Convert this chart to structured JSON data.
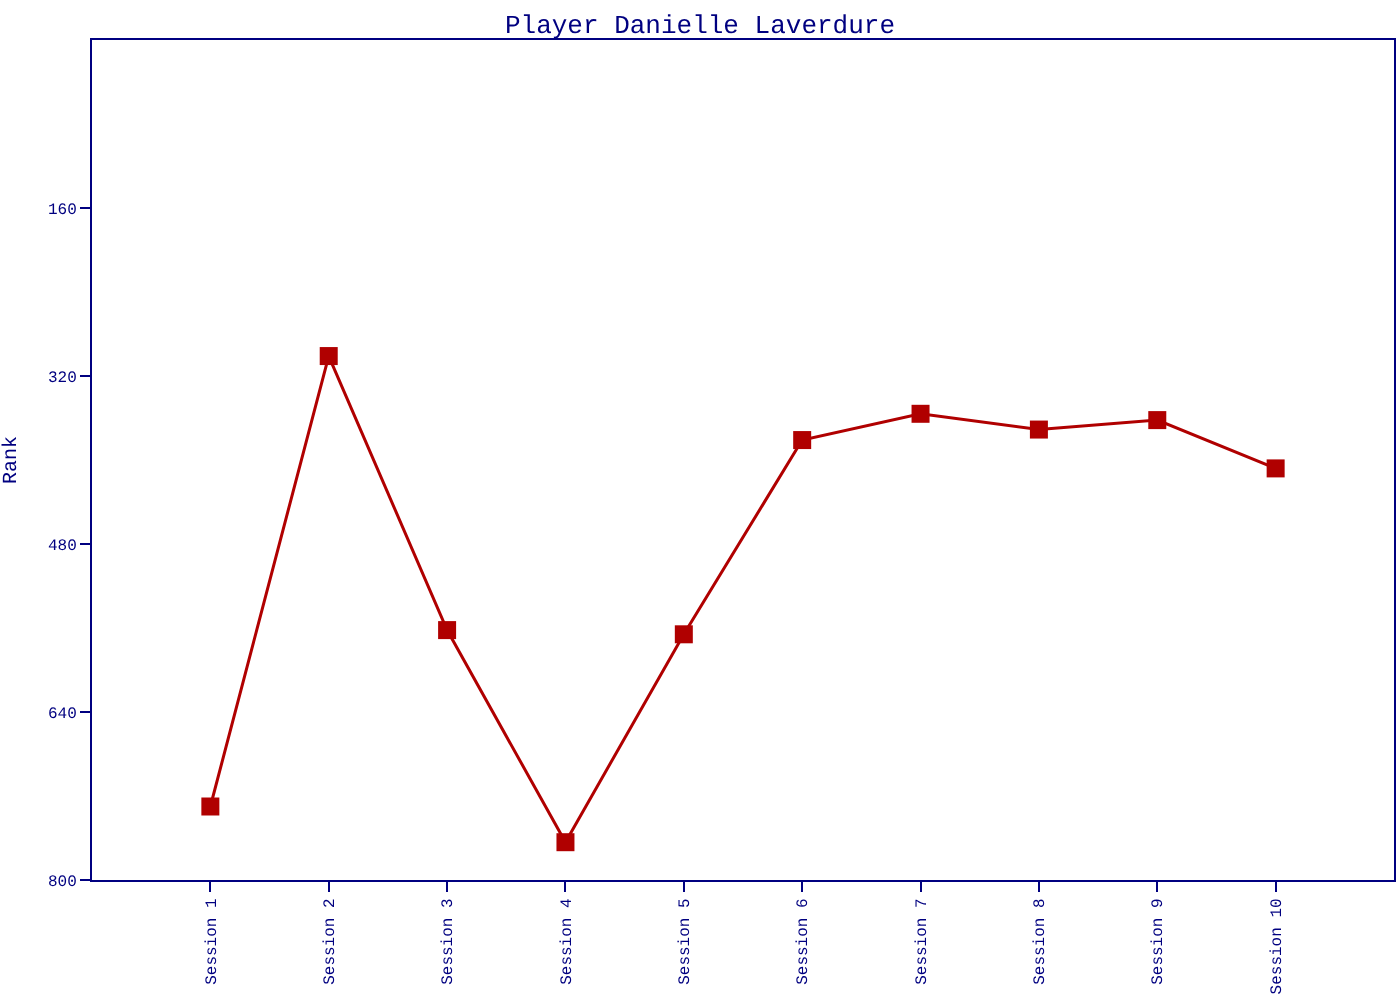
{
  "chart_data": {
    "type": "line",
    "title": "Player Danielle Laverdure",
    "ylabel": "Rank",
    "categories": [
      "Session 1",
      "Session 2",
      "Session 3",
      "Session 4",
      "Session 5",
      "Session 6",
      "Session 7",
      "Session 8",
      "Session 9",
      "Session 10"
    ],
    "series": [
      {
        "color": "#b00000",
        "values": [
          730,
          301,
          562,
          764,
          566,
          381,
          356,
          371,
          362,
          408
        ]
      }
    ],
    "ylim": [
      800,
      0
    ],
    "yticks": [
      160,
      320,
      480,
      640,
      800
    ],
    "marker": "square",
    "line_style": "solid"
  }
}
